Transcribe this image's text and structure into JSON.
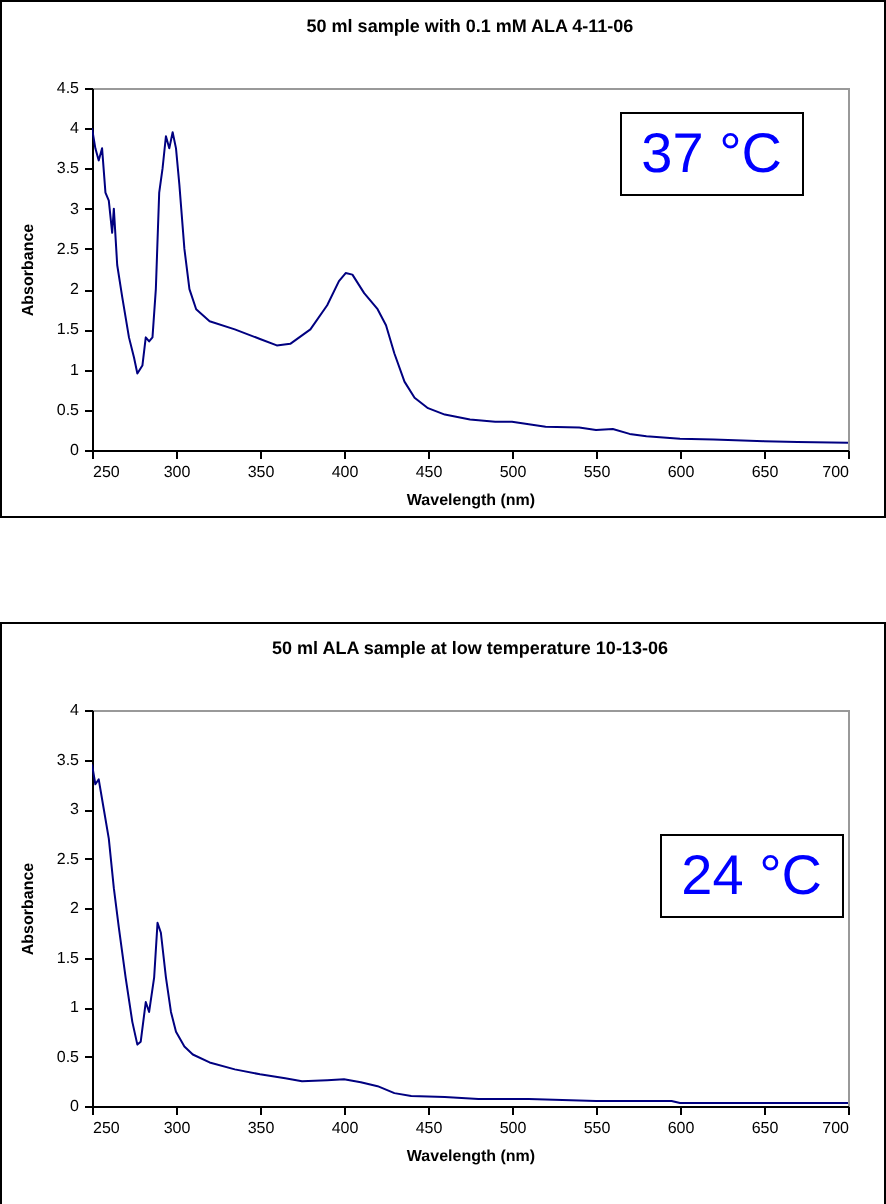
{
  "chart_data": [
    {
      "type": "line",
      "title": "50 ml sample with 0.1 mM ALA 4-11-06",
      "xlabel": "Wavelength (nm)",
      "ylabel": "Absorbance",
      "annotations": [
        "37 °C"
      ],
      "xlim": [
        250,
        700
      ],
      "xticks": [
        250,
        300,
        350,
        400,
        450,
        500,
        550,
        600,
        650,
        700
      ],
      "ylim": [
        0,
        4.5
      ],
      "yticks": [
        0,
        0.5,
        1,
        1.5,
        2,
        2.5,
        3,
        3.5,
        4,
        4.5
      ],
      "x": [
        250,
        252,
        254,
        256,
        258,
        260,
        262,
        263,
        265,
        268,
        272,
        275,
        277,
        280,
        282,
        284,
        286,
        288,
        290,
        292,
        294,
        296,
        298,
        300,
        302,
        305,
        308,
        312,
        320,
        335,
        350,
        360,
        368,
        380,
        390,
        397,
        401,
        405,
        412,
        420,
        425,
        430,
        436,
        442,
        450,
        460,
        475,
        490,
        500,
        510,
        520,
        540,
        550,
        560,
        570,
        580,
        600,
        620,
        650,
        670,
        700
      ],
      "series": [
        {
          "color": "#000080",
          "values": [
            4.0,
            3.75,
            3.6,
            3.75,
            3.2,
            3.1,
            2.7,
            3.0,
            2.3,
            1.9,
            1.4,
            1.15,
            0.95,
            1.05,
            1.4,
            1.35,
            1.4,
            2.0,
            3.2,
            3.5,
            3.9,
            3.75,
            3.95,
            3.75,
            3.3,
            2.5,
            2.0,
            1.75,
            1.6,
            1.5,
            1.38,
            1.3,
            1.32,
            1.5,
            1.8,
            2.1,
            2.2,
            2.18,
            1.95,
            1.75,
            1.55,
            1.2,
            0.85,
            0.65,
            0.52,
            0.44,
            0.38,
            0.35,
            0.35,
            0.32,
            0.29,
            0.28,
            0.25,
            0.26,
            0.2,
            0.17,
            0.14,
            0.13,
            0.11,
            0.1,
            0.09
          ]
        }
      ]
    },
    {
      "type": "line",
      "title": "50 ml ALA sample at low temperature 10-13-06",
      "xlabel": "Wavelength (nm)",
      "ylabel": "Absorbance",
      "annotations": [
        "24 °C"
      ],
      "xlim": [
        250,
        700
      ],
      "xticks": [
        250,
        300,
        350,
        400,
        450,
        500,
        550,
        600,
        650,
        700
      ],
      "ylim": [
        0,
        4
      ],
      "yticks": [
        0,
        0.5,
        1,
        1.5,
        2,
        2.5,
        3,
        3.5,
        4
      ],
      "x": [
        250,
        252,
        254,
        257,
        260,
        263,
        266,
        270,
        274,
        277,
        279,
        282,
        284,
        287,
        289,
        291,
        294,
        297,
        300,
        305,
        310,
        320,
        335,
        350,
        365,
        375,
        390,
        400,
        410,
        420,
        430,
        440,
        460,
        480,
        510,
        530,
        550,
        580,
        595,
        600,
        650,
        700
      ],
      "series": [
        {
          "color": "#000080",
          "values": [
            3.45,
            3.25,
            3.3,
            3.0,
            2.7,
            2.2,
            1.8,
            1.3,
            0.85,
            0.62,
            0.65,
            1.05,
            0.95,
            1.3,
            1.85,
            1.75,
            1.3,
            0.95,
            0.75,
            0.6,
            0.52,
            0.44,
            0.37,
            0.32,
            0.28,
            0.25,
            0.26,
            0.27,
            0.24,
            0.2,
            0.13,
            0.1,
            0.09,
            0.07,
            0.07,
            0.06,
            0.05,
            0.05,
            0.05,
            0.03,
            0.03,
            0.03
          ]
        }
      ]
    }
  ]
}
